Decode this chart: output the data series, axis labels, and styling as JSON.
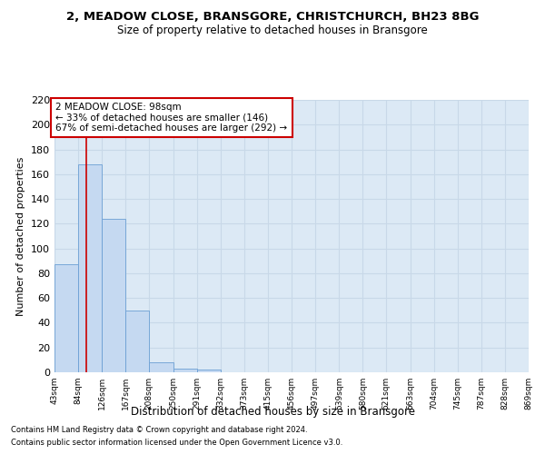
{
  "title": "2, MEADOW CLOSE, BRANSGORE, CHRISTCHURCH, BH23 8BG",
  "subtitle": "Size of property relative to detached houses in Bransgore",
  "xlabel": "Distribution of detached houses by size in Bransgore",
  "ylabel": "Number of detached properties",
  "bar_edges": [
    43,
    84,
    126,
    167,
    208,
    250,
    291,
    332,
    373,
    415,
    456,
    497,
    539,
    580,
    621,
    663,
    704,
    745,
    787,
    828,
    869
  ],
  "bar_heights": [
    87,
    168,
    124,
    50,
    8,
    3,
    2,
    0,
    0,
    0,
    0,
    0,
    0,
    0,
    0,
    0,
    0,
    0,
    0,
    0
  ],
  "bar_color": "#c5d9f1",
  "bar_edge_color": "#6b9fd4",
  "grid_color": "#c8d8e8",
  "property_line_x": 98,
  "property_line_color": "#cc0000",
  "annotation_text": "2 MEADOW CLOSE: 98sqm\n← 33% of detached houses are smaller (146)\n67% of semi-detached houses are larger (292) →",
  "annotation_box_color": "#ffffff",
  "annotation_box_edge": "#cc0000",
  "ylim": [
    0,
    220
  ],
  "yticks": [
    0,
    20,
    40,
    60,
    80,
    100,
    120,
    140,
    160,
    180,
    200,
    220
  ],
  "tick_labels": [
    "43sqm",
    "84sqm",
    "126sqm",
    "167sqm",
    "208sqm",
    "250sqm",
    "291sqm",
    "332sqm",
    "373sqm",
    "415sqm",
    "456sqm",
    "497sqm",
    "539sqm",
    "580sqm",
    "621sqm",
    "663sqm",
    "704sqm",
    "745sqm",
    "787sqm",
    "828sqm",
    "869sqm"
  ],
  "footer_line1": "Contains HM Land Registry data © Crown copyright and database right 2024.",
  "footer_line2": "Contains public sector information licensed under the Open Government Licence v3.0.",
  "bg_color": "#dce9f5",
  "fig_bg": "#ffffff"
}
